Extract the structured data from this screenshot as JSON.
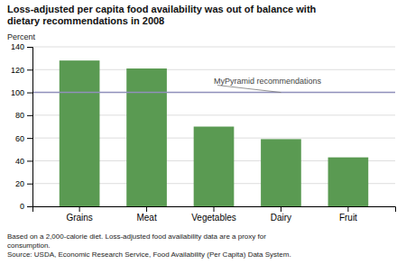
{
  "chart_data": {
    "type": "bar",
    "title": [
      "Loss-adjusted per capita food availability was out of balance with",
      "dietary recommendations in 2008"
    ],
    "ylabel": "Percent",
    "categories": [
      "Grains",
      "Meat",
      "Vegetables",
      "Dairy",
      "Fruit"
    ],
    "values": [
      128,
      121,
      70,
      59,
      43
    ],
    "color": "#5a9a52",
    "ylim": [
      0,
      140
    ],
    "yticks": [
      0,
      20,
      40,
      60,
      80,
      100,
      120,
      140
    ],
    "grid": true,
    "annotations": [
      {
        "text": "MyPyramid recommendations",
        "y": 100,
        "color": "#9090bb"
      }
    ],
    "notes": [
      "Based on a 2,000-calorie diet.  Loss-adjusted food availability data are a proxy for",
      "consumption.",
      "Source: USDA, Economic Research Service, Food Availability (Per Capita) Data System."
    ]
  }
}
